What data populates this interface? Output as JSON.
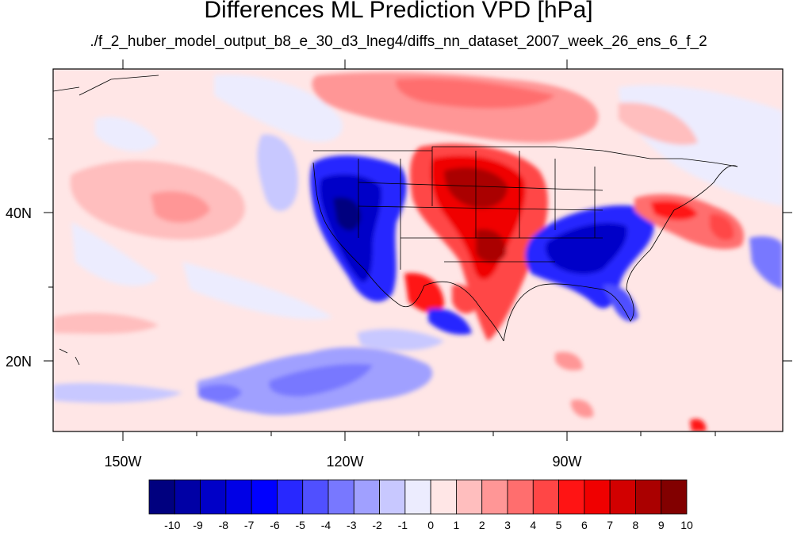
{
  "title": "Differences ML Prediction VPD [hPa]",
  "subtitle": "./f_2_huber_model_output_b8_e_30_d3_lneg4/diffs_nn_dataset_2007_week_26_ens_6_f_2",
  "x_ticks": [
    "150W",
    "120W",
    "90W"
  ],
  "y_ticks": [
    "40N",
    "20N"
  ],
  "colorbar": {
    "labels": [
      "-10",
      "-9",
      "-8",
      "-7",
      "-6",
      "-5",
      "-4",
      "-3",
      "-2",
      "-1",
      "0",
      "1",
      "2",
      "3",
      "4",
      "5",
      "6",
      "7",
      "8",
      "9",
      "10"
    ],
    "colors": [
      "#00007f",
      "#0000a5",
      "#0000c8",
      "#0000e6",
      "#0000ff",
      "#2828ff",
      "#5050ff",
      "#7878ff",
      "#a0a0ff",
      "#c8c8ff",
      "#ececfe",
      "#ffe6e6",
      "#ffbebe",
      "#ff9696",
      "#ff6e6e",
      "#ff4646",
      "#ff1414",
      "#f00000",
      "#d20000",
      "#aa0000",
      "#820000"
    ]
  }
}
